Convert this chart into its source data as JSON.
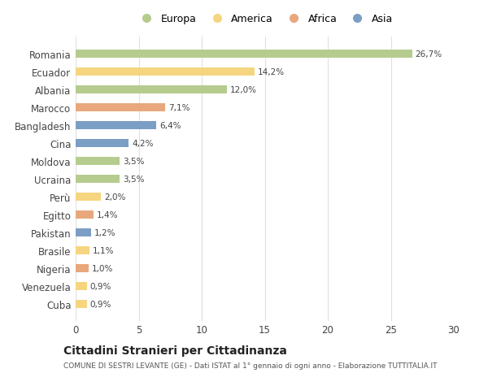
{
  "countries": [
    "Romania",
    "Ecuador",
    "Albania",
    "Marocco",
    "Bangladesh",
    "Cina",
    "Moldova",
    "Ucraina",
    "Perù",
    "Egitto",
    "Pakistan",
    "Brasile",
    "Nigeria",
    "Venezuela",
    "Cuba"
  ],
  "values": [
    26.7,
    14.2,
    12.0,
    7.1,
    6.4,
    4.2,
    3.5,
    3.5,
    2.0,
    1.4,
    1.2,
    1.1,
    1.0,
    0.9,
    0.9
  ],
  "labels": [
    "26,7%",
    "14,2%",
    "12,0%",
    "7,1%",
    "6,4%",
    "4,2%",
    "3,5%",
    "3,5%",
    "2,0%",
    "1,4%",
    "1,2%",
    "1,1%",
    "1,0%",
    "0,9%",
    "0,9%"
  ],
  "categories": [
    "Europa",
    "America",
    "Africa",
    "Asia"
  ],
  "continent": [
    "Europa",
    "America",
    "Europa",
    "Africa",
    "Asia",
    "Asia",
    "Europa",
    "Europa",
    "America",
    "Africa",
    "Asia",
    "America",
    "Africa",
    "America",
    "America"
  ],
  "colors": {
    "Europa": "#b5cc8e",
    "America": "#f5d580",
    "Africa": "#e8a87c",
    "Asia": "#7b9ec4"
  },
  "title": "Cittadini Stranieri per Cittadinanza",
  "subtitle": "COMUNE DI SESTRI LEVANTE (GE) - Dati ISTAT al 1° gennaio di ogni anno - Elaborazione TUTTITALIA.IT",
  "xlim": [
    0,
    30
  ],
  "xticks": [
    0,
    5,
    10,
    15,
    20,
    25,
    30
  ],
  "background_color": "#ffffff",
  "grid_color": "#e0e0e0",
  "bar_height": 0.45
}
